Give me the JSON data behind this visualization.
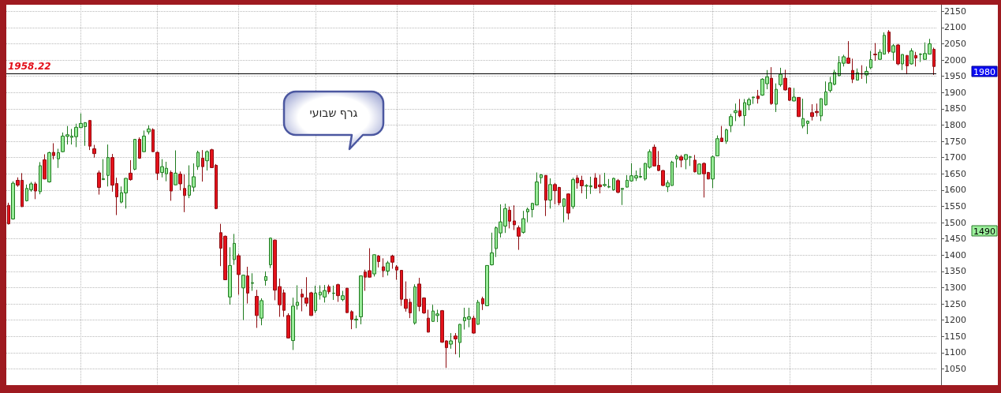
{
  "chart_data": {
    "type": "candlestick",
    "categories": [
      null,
      null,
      null,
      null,
      null,
      null,
      null,
      null,
      null,
      null,
      null,
      null,
      null,
      null,
      null,
      null,
      null,
      null,
      null,
      null,
      null,
      null,
      null,
      null,
      null,
      null,
      null,
      null,
      null,
      null,
      null,
      null,
      null,
      null,
      null,
      null,
      null,
      null,
      null,
      null,
      null,
      null,
      null,
      null,
      null,
      null,
      null,
      null,
      null,
      null,
      null,
      null,
      null,
      null,
      null,
      null,
      null,
      null,
      null,
      null,
      null,
      null,
      null,
      null,
      null,
      null,
      null,
      null,
      null,
      null,
      null,
      null,
      null,
      null,
      null,
      null,
      null,
      null,
      null,
      null,
      null,
      null,
      null,
      null,
      null,
      null,
      null,
      null,
      null,
      null,
      null,
      null,
      null,
      null,
      null,
      null,
      null,
      null,
      null,
      null,
      null,
      null,
      null,
      null,
      null,
      null,
      null,
      null,
      null,
      null,
      null,
      null,
      null,
      null,
      null,
      null,
      null,
      null,
      null,
      null,
      null,
      null,
      null,
      null,
      null,
      null,
      null,
      null,
      null,
      null,
      null,
      null,
      null,
      null,
      null,
      null,
      null,
      null,
      null,
      null,
      null,
      null,
      null,
      null,
      null,
      null,
      null,
      null,
      null,
      null,
      null,
      null,
      null,
      null,
      null,
      null,
      null,
      null,
      null,
      null,
      null,
      null,
      null,
      null,
      null,
      null,
      null,
      null,
      null,
      null,
      null,
      null,
      null,
      null,
      null,
      null,
      null,
      null,
      null,
      null,
      null,
      null,
      null,
      null,
      null,
      null,
      null,
      null,
      null,
      null,
      null,
      null,
      null,
      null,
      null,
      null,
      null,
      null,
      null,
      null,
      null,
      null,
      null,
      null,
      null,
      null
    ],
    "ohlc": [
      [
        1553,
        1561,
        1494,
        1496
      ],
      [
        1511,
        1627,
        1509,
        1621
      ],
      [
        1630,
        1639,
        1610,
        1615
      ],
      [
        1630,
        1652,
        1548,
        1549
      ],
      [
        1567,
        1617,
        1565,
        1605
      ],
      [
        1601,
        1625,
        1595,
        1619
      ],
      [
        1619,
        1625,
        1572,
        1597
      ],
      [
        1595,
        1686,
        1587,
        1675
      ],
      [
        1693,
        1710,
        1633,
        1634
      ],
      [
        1625,
        1718,
        1623,
        1715
      ],
      [
        1716,
        1744,
        1694,
        1706
      ],
      [
        1696,
        1727,
        1668,
        1715
      ],
      [
        1718,
        1777,
        1716,
        1766
      ],
      [
        1765,
        1797,
        1740,
        1770
      ],
      [
        1762,
        1788,
        1740,
        1766
      ],
      [
        1764,
        1804,
        1732,
        1793
      ],
      [
        1792,
        1836,
        1791,
        1805
      ],
      [
        1795,
        1809,
        1736,
        1807
      ],
      [
        1814,
        1815,
        1723,
        1735
      ],
      [
        1727,
        1739,
        1700,
        1712
      ],
      [
        1653,
        1660,
        1586,
        1608
      ],
      [
        1632,
        1695,
        1631,
        1635
      ],
      [
        1645,
        1740,
        1611,
        1700
      ],
      [
        1700,
        1711,
        1595,
        1615
      ],
      [
        1620,
        1638,
        1523,
        1579
      ],
      [
        1563,
        1611,
        1559,
        1592
      ],
      [
        1591,
        1637,
        1543,
        1636
      ],
      [
        1652,
        1692,
        1629,
        1632
      ],
      [
        1664,
        1757,
        1661,
        1756
      ],
      [
        1756,
        1762,
        1696,
        1698
      ],
      [
        1718,
        1783,
        1717,
        1766
      ],
      [
        1779,
        1799,
        1771,
        1788
      ],
      [
        1786,
        1790,
        1717,
        1718
      ],
      [
        1716,
        1719,
        1631,
        1652
      ],
      [
        1654,
        1695,
        1639,
        1672
      ],
      [
        1650,
        1687,
        1627,
        1667
      ],
      [
        1654,
        1660,
        1567,
        1597
      ],
      [
        1616,
        1722,
        1615,
        1652
      ],
      [
        1649,
        1657,
        1599,
        1619
      ],
      [
        1605,
        1648,
        1532,
        1583
      ],
      [
        1584,
        1676,
        1575,
        1614
      ],
      [
        1609,
        1682,
        1595,
        1641
      ],
      [
        1672,
        1721,
        1662,
        1716
      ],
      [
        1698,
        1723,
        1626,
        1672
      ],
      [
        1690,
        1722,
        1660,
        1718
      ],
      [
        1724,
        1727,
        1668,
        1669
      ],
      [
        1676,
        1680,
        1541,
        1543
      ],
      [
        1469,
        1496,
        1366,
        1421
      ],
      [
        1458,
        1460,
        1323,
        1324
      ],
      [
        1271,
        1424,
        1248,
        1368
      ],
      [
        1386,
        1465,
        1370,
        1436
      ],
      [
        1398,
        1404,
        1278,
        1340
      ],
      [
        1299,
        1339,
        1200,
        1338
      ],
      [
        1336,
        1364,
        1251,
        1283
      ],
      [
        1313,
        1344,
        1290,
        1315
      ],
      [
        1273,
        1293,
        1176,
        1214
      ],
      [
        1206,
        1267,
        1184,
        1260
      ],
      [
        1322,
        1350,
        1306,
        1334
      ],
      [
        1370,
        1454,
        1360,
        1452
      ],
      [
        1446,
        1448,
        1261,
        1292
      ],
      [
        1303,
        1328,
        1210,
        1247
      ],
      [
        1284,
        1294,
        1210,
        1230
      ],
      [
        1214,
        1221,
        1144,
        1145
      ],
      [
        1137,
        1269,
        1108,
        1243
      ],
      [
        1245,
        1307,
        1232,
        1255
      ],
      [
        1280,
        1296,
        1227,
        1271
      ],
      [
        1268,
        1332,
        1242,
        1252
      ],
      [
        1284,
        1287,
        1213,
        1214
      ],
      [
        1229,
        1306,
        1222,
        1283
      ],
      [
        1277,
        1307,
        1263,
        1286
      ],
      [
        1271,
        1308,
        1254,
        1291
      ],
      [
        1303,
        1309,
        1280,
        1287
      ],
      [
        1282,
        1306,
        1262,
        1283
      ],
      [
        1309,
        1312,
        1256,
        1275
      ],
      [
        1263,
        1290,
        1258,
        1275
      ],
      [
        1298,
        1299,
        1222,
        1223
      ],
      [
        1226,
        1230,
        1172,
        1202
      ],
      [
        1200,
        1214,
        1175,
        1203
      ],
      [
        1210,
        1337,
        1187,
        1336
      ],
      [
        1348,
        1355,
        1290,
        1332
      ],
      [
        1352,
        1421,
        1331,
        1332
      ],
      [
        1342,
        1402,
        1334,
        1401
      ],
      [
        1397,
        1400,
        1362,
        1380
      ],
      [
        1364,
        1390,
        1332,
        1352
      ],
      [
        1351,
        1382,
        1337,
        1376
      ],
      [
        1397,
        1401,
        1358,
        1378
      ],
      [
        1364,
        1369,
        1324,
        1354
      ],
      [
        1353,
        1354,
        1244,
        1264
      ],
      [
        1264,
        1319,
        1226,
        1236
      ],
      [
        1255,
        1266,
        1206,
        1222
      ],
      [
        1191,
        1310,
        1186,
        1302
      ],
      [
        1311,
        1330,
        1227,
        1242
      ],
      [
        1268,
        1270,
        1219,
        1222
      ],
      [
        1206,
        1232,
        1162,
        1163
      ],
      [
        1196,
        1247,
        1195,
        1228
      ],
      [
        1214,
        1232,
        1194,
        1219
      ],
      [
        1229,
        1231,
        1130,
        1132
      ],
      [
        1136,
        1138,
        1053,
        1115
      ],
      [
        1126,
        1160,
        1112,
        1136
      ],
      [
        1151,
        1160,
        1095,
        1142
      ],
      [
        1131,
        1188,
        1085,
        1187
      ],
      [
        1198,
        1238,
        1171,
        1208
      ],
      [
        1203,
        1238,
        1178,
        1210
      ],
      [
        1206,
        1214,
        1158,
        1160
      ],
      [
        1187,
        1262,
        1186,
        1255
      ],
      [
        1266,
        1272,
        1231,
        1250
      ],
      [
        1244,
        1369,
        1243,
        1368
      ],
      [
        1370,
        1469,
        1368,
        1407
      ],
      [
        1420,
        1488,
        1394,
        1484
      ],
      [
        1468,
        1556,
        1454,
        1502
      ],
      [
        1489,
        1558,
        1468,
        1543
      ],
      [
        1538,
        1549,
        1482,
        1504
      ],
      [
        1505,
        1553,
        1477,
        1493
      ],
      [
        1484,
        1491,
        1416,
        1458
      ],
      [
        1470,
        1536,
        1466,
        1512
      ],
      [
        1533,
        1546,
        1501,
        1541
      ],
      [
        1540,
        1561,
        1516,
        1559
      ],
      [
        1554,
        1654,
        1553,
        1625
      ],
      [
        1638,
        1649,
        1620,
        1647
      ],
      [
        1645,
        1646,
        1520,
        1569
      ],
      [
        1569,
        1636,
        1543,
        1617
      ],
      [
        1617,
        1622,
        1556,
        1598
      ],
      [
        1608,
        1610,
        1553,
        1561
      ],
      [
        1550,
        1574,
        1501,
        1573
      ],
      [
        1588,
        1590,
        1509,
        1529
      ],
      [
        1549,
        1638,
        1542,
        1632
      ],
      [
        1637,
        1646,
        1604,
        1622
      ],
      [
        1630,
        1644,
        1590,
        1613
      ],
      [
        1612,
        1618,
        1573,
        1614
      ],
      [
        1610,
        1641,
        1588,
        1613
      ],
      [
        1637,
        1652,
        1604,
        1606
      ],
      [
        1616,
        1647,
        1590,
        1610
      ],
      [
        1614,
        1653,
        1610,
        1617
      ],
      [
        1609,
        1634,
        1606,
        1611
      ],
      [
        1601,
        1638,
        1598,
        1636
      ],
      [
        1629,
        1634,
        1590,
        1593
      ],
      [
        1602,
        1606,
        1554,
        1605
      ],
      [
        1609,
        1646,
        1608,
        1630
      ],
      [
        1628,
        1682,
        1626,
        1644
      ],
      [
        1637,
        1660,
        1628,
        1644
      ],
      [
        1640,
        1668,
        1637,
        1642
      ],
      [
        1634,
        1683,
        1629,
        1682
      ],
      [
        1670,
        1725,
        1666,
        1718
      ],
      [
        1732,
        1740,
        1673,
        1674
      ],
      [
        1676,
        1720,
        1658,
        1660
      ],
      [
        1660,
        1662,
        1612,
        1614
      ],
      [
        1610,
        1630,
        1594,
        1622
      ],
      [
        1614,
        1690,
        1613,
        1686
      ],
      [
        1696,
        1709,
        1669,
        1704
      ],
      [
        1702,
        1708,
        1670,
        1692
      ],
      [
        1694,
        1710,
        1664,
        1709
      ],
      [
        1701,
        1705,
        1674,
        1702
      ],
      [
        1692,
        1708,
        1654,
        1656
      ],
      [
        1649,
        1682,
        1648,
        1680
      ],
      [
        1682,
        1685,
        1577,
        1650
      ],
      [
        1654,
        1656,
        1633,
        1634
      ],
      [
        1634,
        1706,
        1606,
        1702
      ],
      [
        1705,
        1768,
        1704,
        1758
      ],
      [
        1760,
        1797,
        1748,
        1749
      ],
      [
        1750,
        1789,
        1742,
        1785
      ],
      [
        1798,
        1834,
        1778,
        1826
      ],
      [
        1838,
        1866,
        1812,
        1844
      ],
      [
        1844,
        1880,
        1824,
        1828
      ],
      [
        1829,
        1880,
        1797,
        1869
      ],
      [
        1862,
        1884,
        1846,
        1878
      ],
      [
        1884,
        1887,
        1865,
        1886
      ],
      [
        1889,
        1908,
        1866,
        1881
      ],
      [
        1892,
        1944,
        1890,
        1941
      ],
      [
        1927,
        1969,
        1910,
        1948
      ],
      [
        1944,
        1978,
        1862,
        1866
      ],
      [
        1864,
        1928,
        1840,
        1910
      ],
      [
        1924,
        1976,
        1918,
        1956
      ],
      [
        1944,
        1970,
        1906,
        1908
      ],
      [
        1914,
        1916,
        1874,
        1876
      ],
      [
        1874,
        1914,
        1873,
        1886
      ],
      [
        1885,
        1886,
        1825,
        1826
      ],
      [
        1797,
        1881,
        1790,
        1820
      ],
      [
        1805,
        1814,
        1772,
        1812
      ],
      [
        1838,
        1864,
        1814,
        1826
      ],
      [
        1842,
        1866,
        1826,
        1838
      ],
      [
        1828,
        1882,
        1812,
        1881
      ],
      [
        1862,
        1934,
        1860,
        1902
      ],
      [
        1906,
        1948,
        1900,
        1930
      ],
      [
        1925,
        1970,
        1922,
        1962
      ],
      [
        1952,
        2012,
        1950,
        1992
      ],
      [
        1990,
        2016,
        1980,
        2010
      ],
      [
        2006,
        2058,
        1988,
        1990
      ],
      [
        1968,
        2004,
        1929,
        1941
      ],
      [
        1938,
        1974,
        1937,
        1961
      ],
      [
        1958,
        1984,
        1942,
        1957
      ],
      [
        1954,
        1980,
        1928,
        1965
      ],
      [
        1976,
        2028,
        1972,
        2001
      ],
      [
        2018,
        2052,
        1998,
        2016
      ],
      [
        2002,
        2033,
        2001,
        2024
      ],
      [
        2018,
        2085,
        2017,
        2076
      ],
      [
        2086,
        2092,
        2020,
        2026
      ],
      [
        2024,
        2049,
        1998,
        2044
      ],
      [
        2046,
        2050,
        1984,
        1988
      ],
      [
        1988,
        2018,
        1969,
        2017
      ],
      [
        2014,
        2015,
        1956,
        1982
      ],
      [
        1988,
        2036,
        1986,
        2028
      ],
      [
        2014,
        2025,
        1980,
        2006
      ],
      [
        2017,
        2021,
        1994,
        2018
      ],
      [
        2002,
        2054,
        2001,
        2020
      ],
      [
        2018,
        2065,
        2017,
        2050
      ],
      [
        2033,
        2038,
        1954,
        1980
      ]
    ],
    "ylim": [
      1000,
      2170
    ],
    "yticks": [
      1050,
      1100,
      1150,
      1200,
      1250,
      1300,
      1350,
      1400,
      1450,
      1500,
      1550,
      1600,
      1650,
      1700,
      1750,
      1800,
      1850,
      1900,
      1950,
      2000,
      2050,
      2100,
      2150
    ],
    "grid": true,
    "tick_labels": "y",
    "ref_lines": [
      {
        "axis": "y",
        "value": 1958.22,
        "label": "1958.22",
        "color": "#000000"
      }
    ],
    "annotations": [
      "גרף שבועי",
      "1980",
      "1490"
    ]
  }
}
